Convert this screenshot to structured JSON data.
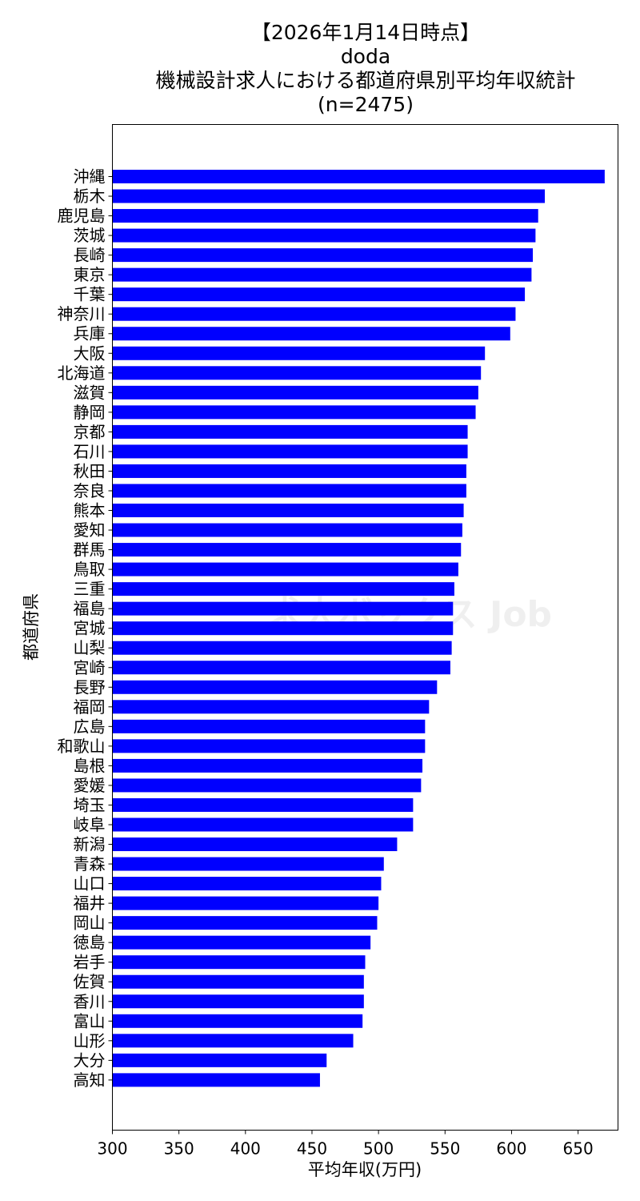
{
  "chart_data": {
    "type": "bar",
    "orientation": "horizontal",
    "title_lines": [
      "【2026年1月14日時点】",
      "doda",
      "機械設計求人における都道府県別平均年収統計",
      "(n=2475)"
    ],
    "xlabel": "平均年収(万円)",
    "ylabel": "都道府県",
    "xlim": [
      300,
      680
    ],
    "xticks": [
      300,
      350,
      400,
      450,
      500,
      550,
      600,
      650
    ],
    "bar_color": "#0000ff",
    "grid": false,
    "watermark": "求人ボックス Job",
    "categories": [
      "沖縄",
      "栃木",
      "鹿児島",
      "茨城",
      "長崎",
      "東京",
      "千葉",
      "神奈川",
      "兵庫",
      "大阪",
      "北海道",
      "滋賀",
      "静岡",
      "京都",
      "石川",
      "秋田",
      "奈良",
      "熊本",
      "愛知",
      "群馬",
      "鳥取",
      "三重",
      "福島",
      "宮城",
      "山梨",
      "宮崎",
      "長野",
      "福岡",
      "広島",
      "和歌山",
      "島根",
      "愛媛",
      "埼玉",
      "岐阜",
      "新潟",
      "青森",
      "山口",
      "福井",
      "岡山",
      "徳島",
      "岩手",
      "佐賀",
      "香川",
      "富山",
      "山形",
      "大分",
      "高知"
    ],
    "values": [
      670,
      625,
      620,
      618,
      616,
      615,
      610,
      603,
      599,
      580,
      577,
      575,
      573,
      567,
      567,
      566,
      566,
      564,
      563,
      562,
      560,
      557,
      556,
      556,
      555,
      554,
      544,
      538,
      535,
      535,
      533,
      532,
      526,
      526,
      514,
      504,
      502,
      500,
      499,
      494,
      490,
      489,
      489,
      488,
      481,
      461,
      456
    ]
  }
}
